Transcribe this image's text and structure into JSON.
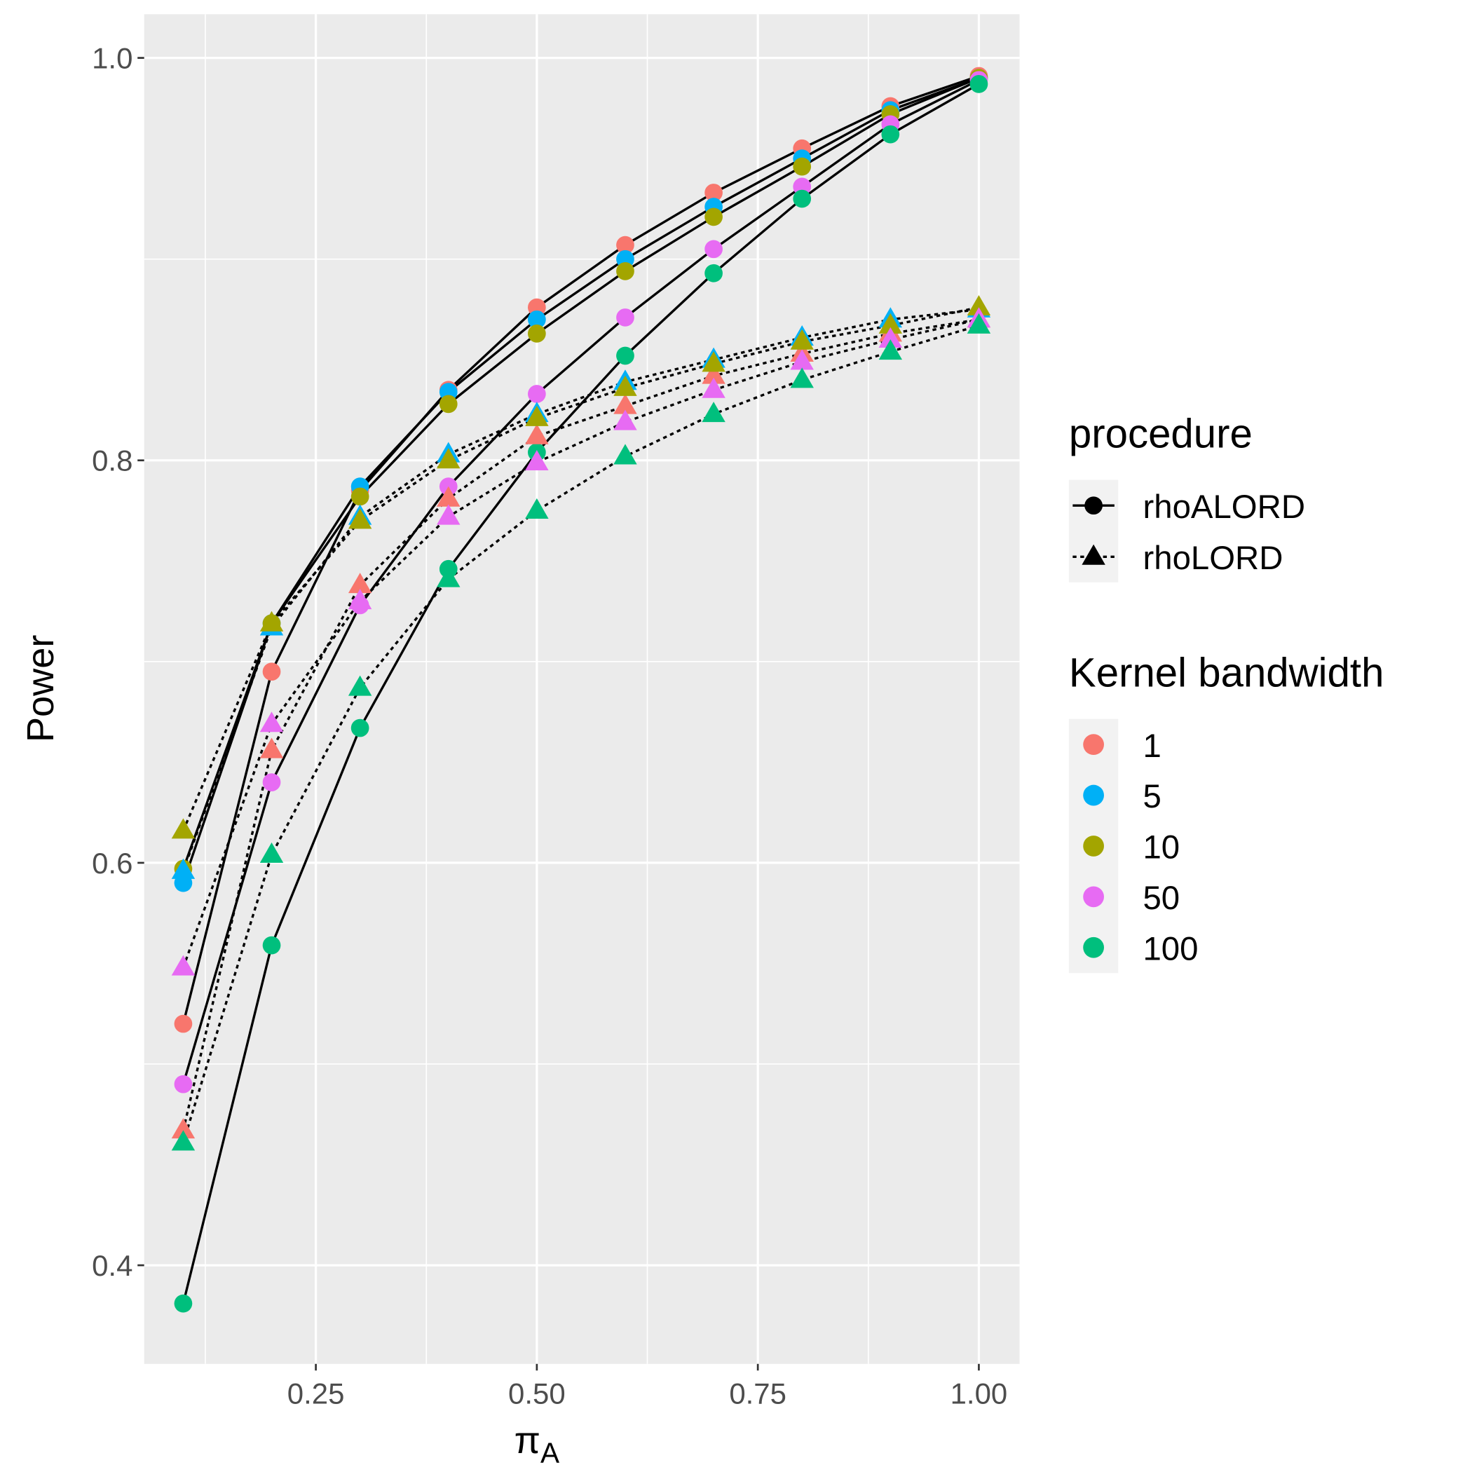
{
  "chart_data": {
    "type": "line",
    "xlabel": "π",
    "xlabel_sub": "A",
    "ylabel": "Power",
    "x": [
      0.1,
      0.2,
      0.3,
      0.4,
      0.5,
      0.6,
      0.7,
      0.8,
      0.9,
      1.0
    ],
    "xlim": [
      0.0558,
      1.0461
    ],
    "ylim": [
      0.351,
      1.0217
    ],
    "xticks": [
      0.25,
      {
        "value": 0.5,
        "label": "0.50"
      },
      0.75,
      {
        "value": 1.0,
        "label": "1.00"
      }
    ],
    "yticks": [
      0.4,
      0.6,
      0.8,
      {
        "value": 1.0,
        "label": "1.0"
      }
    ],
    "x_minor_grid": [
      0.125,
      0.375,
      0.625,
      0.875
    ],
    "y_minor_grid": [
      0.5,
      0.7,
      0.9
    ],
    "grid": true,
    "legends": [
      {
        "title": "procedure",
        "items": [
          {
            "label": "rhoALORD",
            "shape": "circle",
            "line": "solid"
          },
          {
            "label": "rhoLORD",
            "shape": "triangle",
            "line": "dotted"
          }
        ]
      },
      {
        "title": "Kernel bandwidth",
        "items": [
          {
            "label": "1",
            "color": "#F8766D"
          },
          {
            "label": "5",
            "color": "#00B0F6"
          },
          {
            "label": "10",
            "color": "#A3A500"
          },
          {
            "label": "50",
            "color": "#E76BF3"
          },
          {
            "label": "100",
            "color": "#00BF7D"
          }
        ]
      }
    ],
    "series": [
      {
        "procedure": "rhoALORD",
        "bandwidth": "1",
        "values": [
          0.52,
          0.695,
          0.785,
          0.835,
          0.876,
          0.907,
          0.933,
          0.955,
          0.976,
          0.991
        ]
      },
      {
        "procedure": "rhoALORD",
        "bandwidth": "5",
        "values": [
          0.59,
          0.719,
          0.787,
          0.834,
          0.87,
          0.9,
          0.926,
          0.95,
          0.974,
          0.99
        ]
      },
      {
        "procedure": "rhoALORD",
        "bandwidth": "10",
        "values": [
          0.597,
          0.719,
          0.782,
          0.828,
          0.863,
          0.894,
          0.921,
          0.946,
          0.972,
          0.99
        ]
      },
      {
        "procedure": "rhoALORD",
        "bandwidth": "50",
        "values": [
          0.49,
          0.64,
          0.728,
          0.787,
          0.833,
          0.871,
          0.905,
          0.936,
          0.967,
          0.989
        ]
      },
      {
        "procedure": "rhoALORD",
        "bandwidth": "100",
        "values": [
          0.381,
          0.559,
          0.667,
          0.746,
          0.804,
          0.852,
          0.893,
          0.93,
          0.962,
          0.987
        ]
      },
      {
        "procedure": "rhoLORD",
        "bandwidth": "1",
        "values": [
          0.467,
          0.656,
          0.738,
          0.781,
          0.812,
          0.827,
          0.842,
          0.853,
          0.863,
          0.87
        ]
      },
      {
        "procedure": "rhoLORD",
        "bandwidth": "5",
        "values": [
          0.596,
          0.717,
          0.772,
          0.803,
          0.823,
          0.839,
          0.85,
          0.861,
          0.87,
          0.875
        ]
      },
      {
        "procedure": "rhoLORD",
        "bandwidth": "10",
        "values": [
          0.616,
          0.719,
          0.77,
          0.8,
          0.821,
          0.836,
          0.848,
          0.859,
          0.867,
          0.876
        ]
      },
      {
        "procedure": "rhoLORD",
        "bandwidth": "50",
        "values": [
          0.548,
          0.669,
          0.73,
          0.772,
          0.799,
          0.819,
          0.835,
          0.849,
          0.86,
          0.87
        ]
      },
      {
        "procedure": "rhoLORD",
        "bandwidth": "100",
        "values": [
          0.461,
          0.604,
          0.687,
          0.741,
          0.775,
          0.802,
          0.823,
          0.84,
          0.854,
          0.867
        ]
      }
    ]
  }
}
